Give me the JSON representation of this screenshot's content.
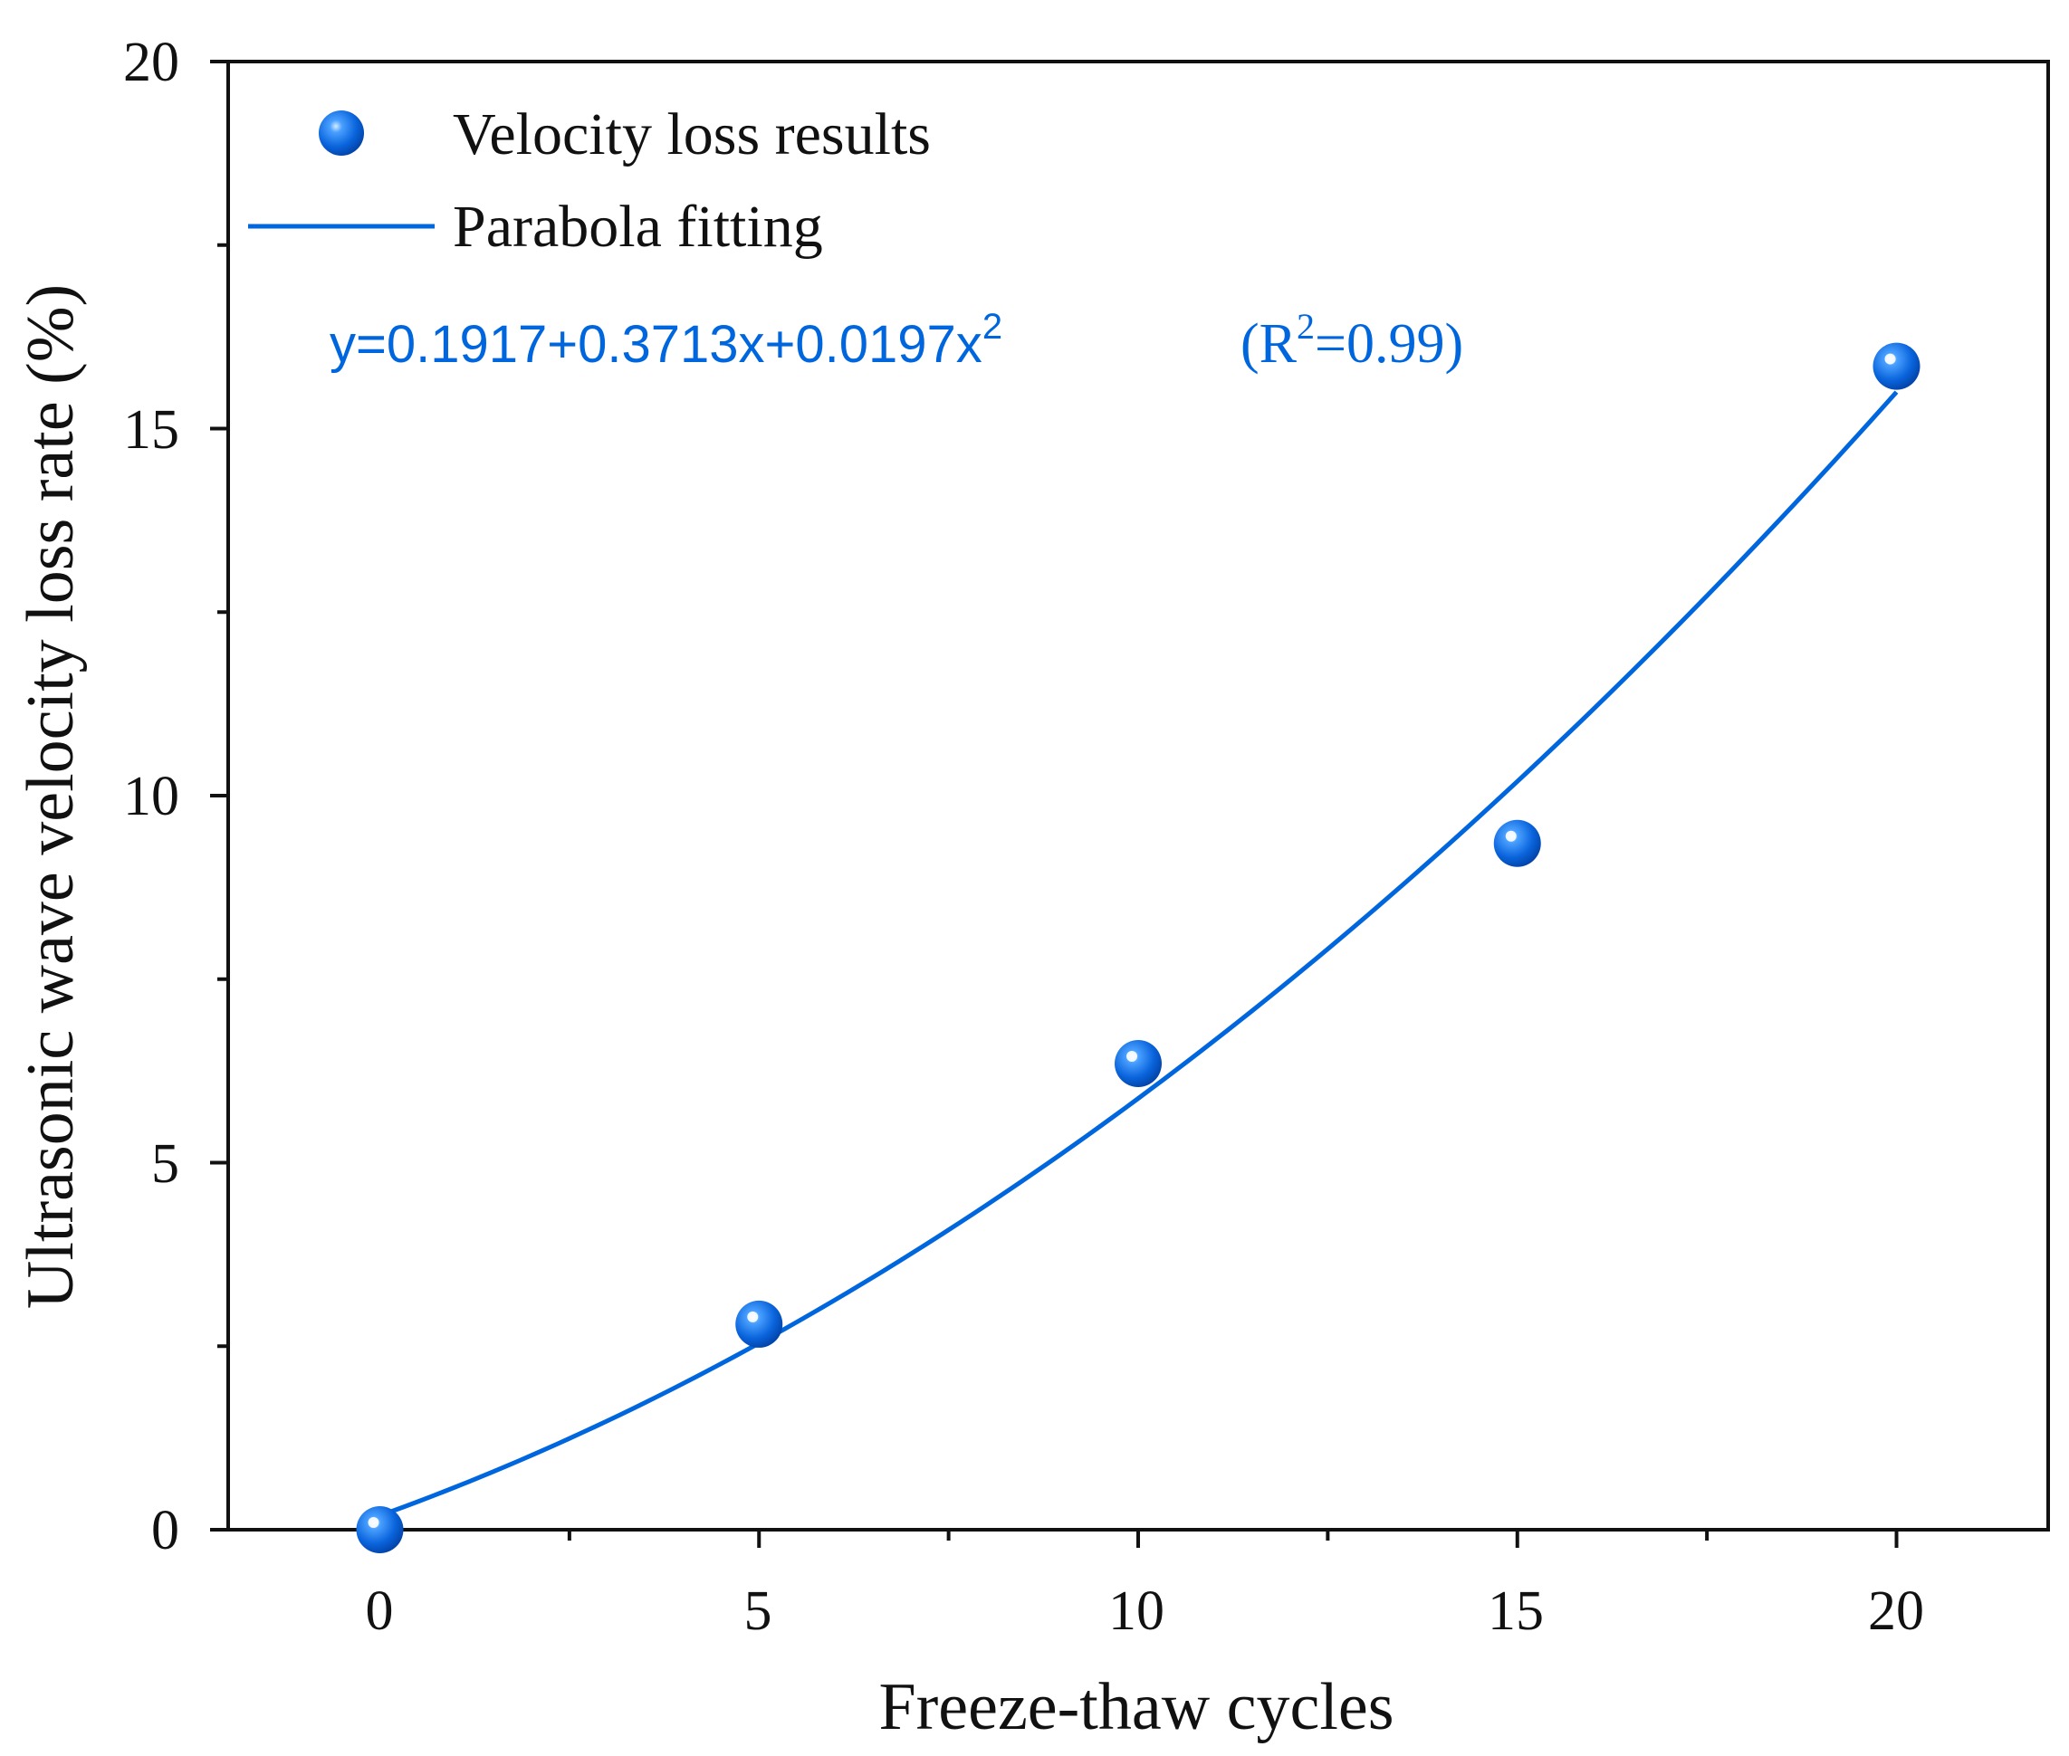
{
  "chart_data": {
    "type": "scatter",
    "xlabel": "Freeze-thaw cycles",
    "ylabel": "Ultrasonic wave velocity loss rate (%)",
    "xlim": [
      -2,
      22
    ],
    "ylim": [
      0,
      20
    ],
    "xticks": [
      "0",
      "5",
      "10",
      "15",
      "20"
    ],
    "yticks": [
      "0",
      "5",
      "10",
      "15",
      "20"
    ],
    "series": [
      {
        "name": "Velocity loss results",
        "kind": "points",
        "x": [
          0,
          5,
          10,
          15,
          20
        ],
        "y": [
          0.0,
          2.8,
          6.35,
          9.35,
          15.85
        ]
      },
      {
        "name": "Parabola fitting",
        "kind": "line",
        "equation": "y=0.1917+0.3713x+0.0197x",
        "equation_sup": "2",
        "coefficients": [
          0.1917,
          0.3713,
          0.0197
        ],
        "x_range": [
          0,
          20
        ]
      }
    ],
    "r2": {
      "prefix": "(R",
      "sup": "2",
      "suffix": "=0.99)"
    },
    "legend_position": "top-left",
    "grid": false
  },
  "colors": {
    "accent": "#0066dd",
    "point": "#0a64dc",
    "point_highlight": "#d6ecff",
    "axis": "#111111"
  }
}
